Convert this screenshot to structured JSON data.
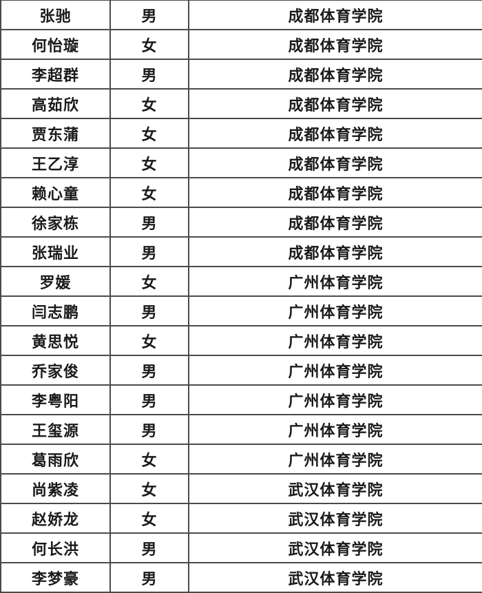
{
  "colors": {
    "background": "#ffffff",
    "border": "#4a4a4a",
    "text": "#1a1a1a"
  },
  "table": {
    "rows": [
      {
        "name": "张驰",
        "gender": "男",
        "institution": "成都体育学院"
      },
      {
        "name": "何怡璇",
        "gender": "女",
        "institution": "成都体育学院"
      },
      {
        "name": "李超群",
        "gender": "男",
        "institution": "成都体育学院"
      },
      {
        "name": "高茹欣",
        "gender": "女",
        "institution": "成都体育学院"
      },
      {
        "name": "贾东蒲",
        "gender": "女",
        "institution": "成都体育学院"
      },
      {
        "name": "王乙淳",
        "gender": "女",
        "institution": "成都体育学院"
      },
      {
        "name": "赖心童",
        "gender": "女",
        "institution": "成都体育学院"
      },
      {
        "name": "徐家栋",
        "gender": "男",
        "institution": "成都体育学院"
      },
      {
        "name": "张瑞业",
        "gender": "男",
        "institution": "成都体育学院"
      },
      {
        "name": "罗媛",
        "gender": "女",
        "institution": "广州体育学院"
      },
      {
        "name": "闫志鹏",
        "gender": "男",
        "institution": "广州体育学院"
      },
      {
        "name": "黄思悦",
        "gender": "女",
        "institution": "广州体育学院"
      },
      {
        "name": "乔家俊",
        "gender": "男",
        "institution": "广州体育学院"
      },
      {
        "name": "李粤阳",
        "gender": "男",
        "institution": "广州体育学院"
      },
      {
        "name": "王玺源",
        "gender": "男",
        "institution": "广州体育学院"
      },
      {
        "name": "葛雨欣",
        "gender": "女",
        "institution": "广州体育学院"
      },
      {
        "name": "尚紫凌",
        "gender": "女",
        "institution": "武汉体育学院"
      },
      {
        "name": "赵娇龙",
        "gender": "女",
        "institution": "武汉体育学院"
      },
      {
        "name": "何长洪",
        "gender": "男",
        "institution": "武汉体育学院"
      },
      {
        "name": "李梦豪",
        "gender": "男",
        "institution": "武汉体育学院"
      }
    ]
  }
}
